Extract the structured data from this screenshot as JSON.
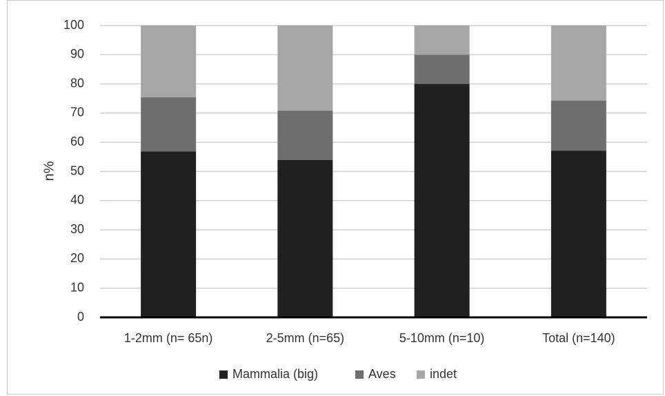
{
  "chart_data": {
    "type": "bar",
    "stacked": true,
    "categories": [
      "1-2mm (n= 65n)",
      "2-5mm (n=65)",
      "5-10mm (n=10)",
      "Total (n=140)"
    ],
    "series": [
      {
        "name": "Mammalia (big)",
        "color": "#202020",
        "values": [
          56.9,
          53.9,
          80.0,
          57.1
        ]
      },
      {
        "name": "Aves",
        "color": "#6e6e6e",
        "values": [
          18.5,
          16.9,
          10.0,
          17.2
        ]
      },
      {
        "name": "indet",
        "color": "#a6a6a6",
        "values": [
          24.6,
          29.2,
          10.0,
          25.7
        ]
      }
    ],
    "ylabel": "n%",
    "xlabel": "",
    "ylim": [
      0,
      100
    ],
    "yticks": [
      "0",
      "10",
      "20",
      "30",
      "40",
      "50",
      "60",
      "70",
      "80",
      "90",
      "100"
    ],
    "grid": true,
    "legend_position": "bottom"
  }
}
